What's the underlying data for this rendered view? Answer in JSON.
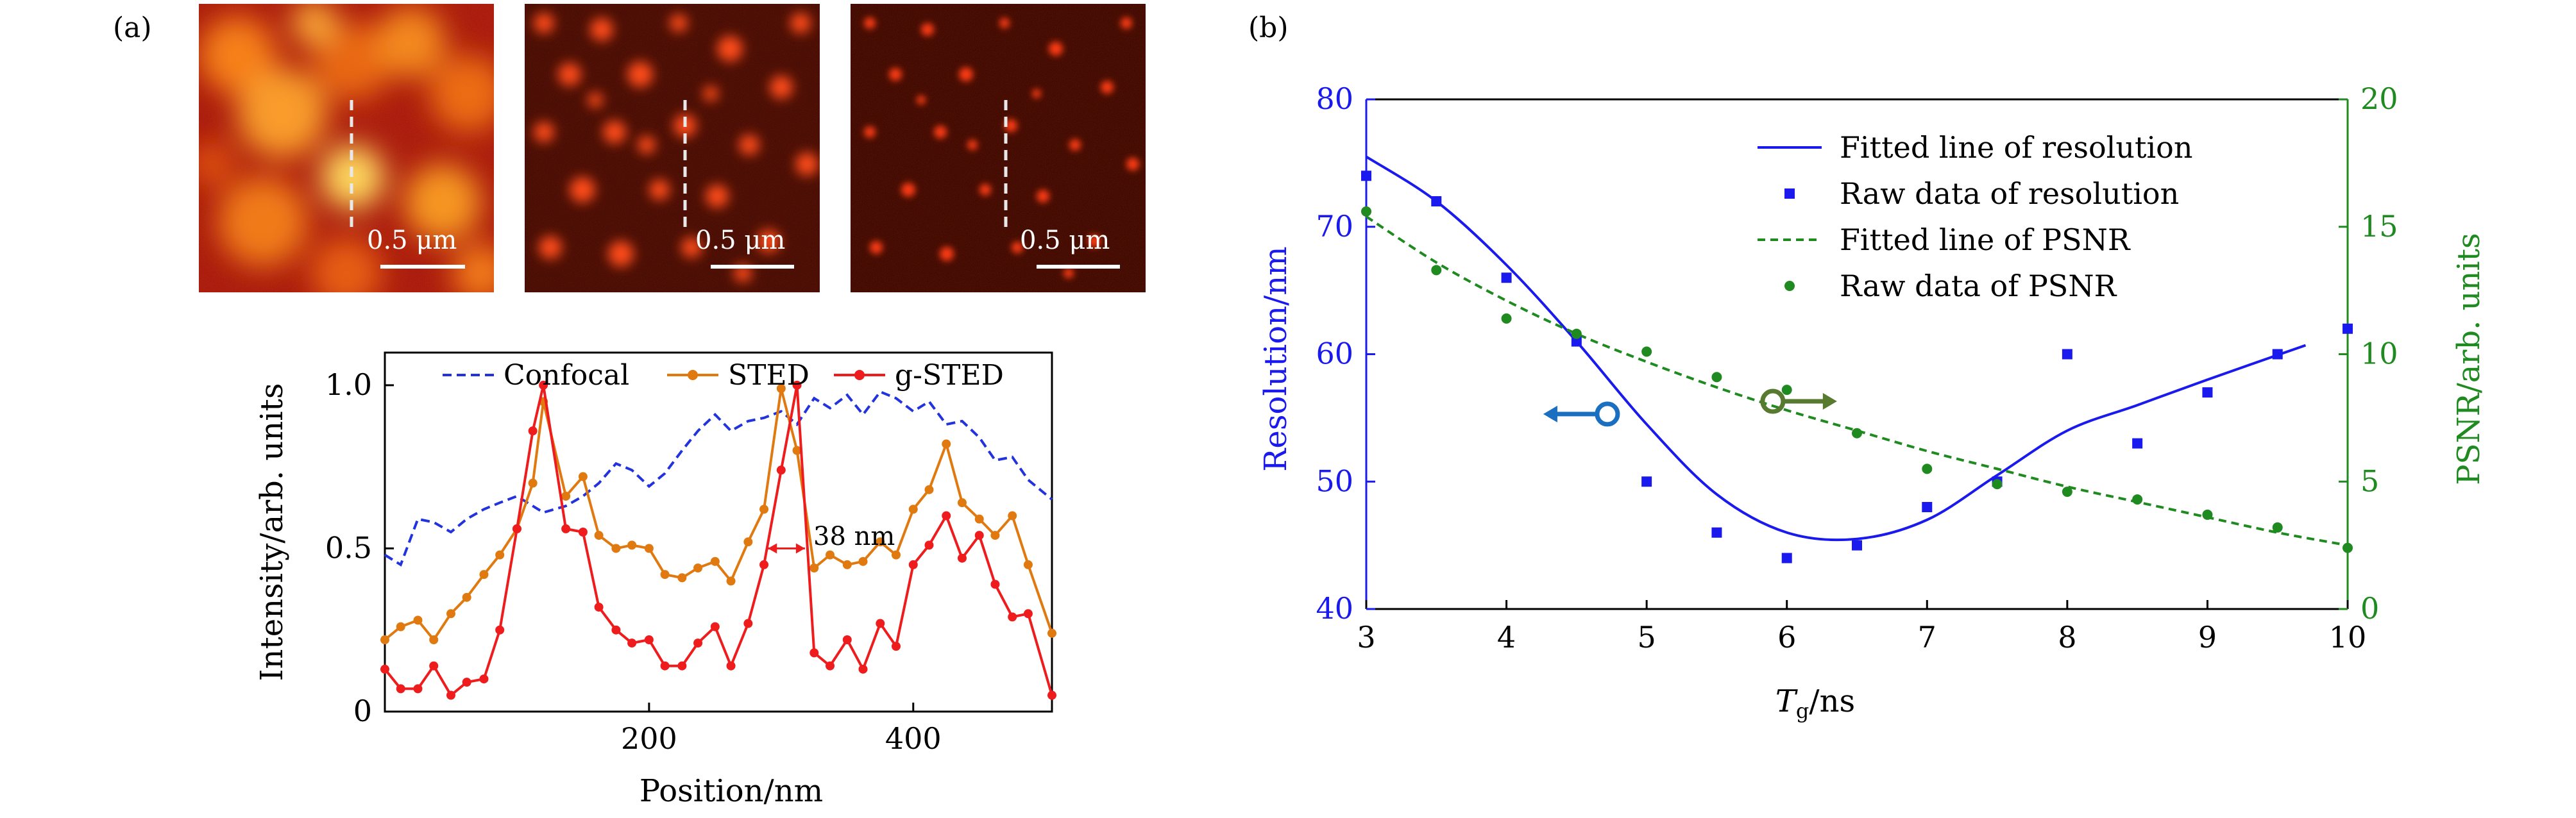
{
  "panel_a": {
    "label": "(a)",
    "images": [
      {
        "name": "confocal",
        "scale_bar": "0.5 μm"
      },
      {
        "name": "sted",
        "scale_bar": "0.5 μm"
      },
      {
        "name": "g-sted",
        "scale_bar": "0.5 μm"
      }
    ],
    "annotation": "38 nm"
  },
  "panel_b": {
    "label": "(b)"
  },
  "chart_data": [
    {
      "type": "line",
      "xlabel": "Position/nm",
      "ylabel": "Intensity/arb. units",
      "xlim": [
        0,
        505
      ],
      "ylim": [
        0,
        1.1
      ],
      "x_ticks": [
        200,
        400
      ],
      "y_ticks": [
        0,
        0.5,
        1.0
      ],
      "y_tick_labels": [
        "0",
        "0.5",
        "1.0"
      ],
      "legend_position": "top",
      "colors": {
        "confocal": "#2233dd",
        "sted": "#e07a10",
        "gsted": "#ee1c1c"
      },
      "x": [
        0,
        12,
        25,
        37,
        50,
        62,
        75,
        87,
        100,
        112,
        120,
        137,
        150,
        162,
        175,
        187,
        200,
        212,
        225,
        237,
        250,
        262,
        275,
        287,
        300,
        312,
        325,
        337,
        350,
        362,
        375,
        387,
        400,
        412,
        425,
        437,
        450,
        462,
        475,
        487,
        505
      ],
      "series": [
        {
          "name": "Confocal",
          "style": "dashed",
          "values": [
            0.48,
            0.45,
            0.59,
            0.58,
            0.55,
            0.59,
            0.62,
            0.64,
            0.66,
            0.63,
            0.61,
            0.63,
            0.66,
            0.7,
            0.76,
            0.74,
            0.69,
            0.73,
            0.8,
            0.86,
            0.91,
            0.86,
            0.89,
            0.9,
            0.92,
            0.88,
            0.96,
            0.93,
            0.97,
            0.91,
            0.98,
            0.96,
            0.92,
            0.95,
            0.88,
            0.89,
            0.84,
            0.77,
            0.78,
            0.71,
            0.65
          ]
        },
        {
          "name": "STED",
          "style": "solid-markers",
          "values": [
            0.22,
            0.26,
            0.28,
            0.22,
            0.3,
            0.35,
            0.42,
            0.48,
            0.56,
            0.7,
            0.95,
            0.66,
            0.72,
            0.54,
            0.5,
            0.51,
            0.5,
            0.42,
            0.41,
            0.44,
            0.46,
            0.4,
            0.52,
            0.62,
            0.99,
            0.8,
            0.44,
            0.48,
            0.45,
            0.46,
            0.52,
            0.48,
            0.62,
            0.68,
            0.82,
            0.64,
            0.59,
            0.54,
            0.6,
            0.45,
            0.24
          ]
        },
        {
          "name": "g-STED",
          "style": "solid-markers",
          "values": [
            0.13,
            0.07,
            0.07,
            0.14,
            0.05,
            0.09,
            0.1,
            0.25,
            0.56,
            0.86,
            1.0,
            0.56,
            0.55,
            0.32,
            0.25,
            0.21,
            0.22,
            0.14,
            0.14,
            0.21,
            0.26,
            0.14,
            0.27,
            0.45,
            0.74,
            1.0,
            0.18,
            0.14,
            0.22,
            0.13,
            0.27,
            0.2,
            0.45,
            0.51,
            0.6,
            0.47,
            0.54,
            0.39,
            0.29,
            0.3,
            0.05
          ]
        }
      ]
    },
    {
      "type": "scatter",
      "xlabel": "T_g/ns",
      "ylabel_left": "Resolution/nm",
      "ylabel_right": "PSNR/arb. units",
      "xlim": [
        3,
        10
      ],
      "ylim_left": [
        40,
        80
      ],
      "ylim_right": [
        0,
        20
      ],
      "x_ticks": [
        3,
        4,
        5,
        6,
        7,
        8,
        9,
        10
      ],
      "y_ticks_left": [
        40,
        50,
        60,
        70,
        80
      ],
      "y_ticks_right": [
        0,
        5,
        10,
        15,
        20
      ],
      "legend_position": "top-right",
      "colors": {
        "resolution": "#1a1aee",
        "psnr": "#1f8a1f",
        "arrow_left": "#1a6fc0",
        "arrow_right": "#587a30"
      },
      "legend": [
        "Fitted line of resolution",
        "Raw data of resolution",
        "Fitted line of PSNR",
        "Raw data of PSNR"
      ],
      "resolution_raw": {
        "x": [
          3,
          3.5,
          4,
          4.5,
          5,
          5.5,
          6,
          6.5,
          7,
          7.5,
          8,
          8.5,
          9,
          9.5,
          10
        ],
        "y": [
          74,
          72,
          66,
          61,
          50,
          46,
          44,
          45,
          48,
          50,
          60,
          53,
          57,
          60,
          62
        ]
      },
      "resolution_fit": {
        "x": [
          3,
          3.5,
          4,
          4.5,
          5,
          5.5,
          6,
          6.5,
          7,
          7.5,
          8,
          8.5,
          9,
          9.7
        ],
        "y": [
          75.5,
          72,
          67,
          61,
          54.5,
          49,
          46,
          45.5,
          47,
          50.5,
          54,
          56,
          58,
          60.7
        ]
      },
      "psnr_raw": {
        "x": [
          3,
          3.5,
          4,
          4.5,
          5,
          5.5,
          6,
          6.5,
          7,
          7.5,
          8,
          8.5,
          9,
          9.5,
          10
        ],
        "y": [
          15.6,
          13.3,
          11.4,
          10.8,
          10.1,
          9.1,
          8.6,
          6.9,
          5.5,
          4.9,
          4.6,
          4.3,
          3.7,
          3.2,
          2.4
        ]
      },
      "psnr_fit": {
        "x": [
          3,
          3.5,
          4,
          4.5,
          5,
          5.5,
          6,
          6.5,
          7,
          7.5,
          8,
          8.5,
          9,
          9.5,
          10
        ],
        "y": [
          15.4,
          13.6,
          12.1,
          10.8,
          9.7,
          8.7,
          7.8,
          7.0,
          6.2,
          5.5,
          4.8,
          4.2,
          3.6,
          3.0,
          2.5
        ]
      }
    }
  ]
}
